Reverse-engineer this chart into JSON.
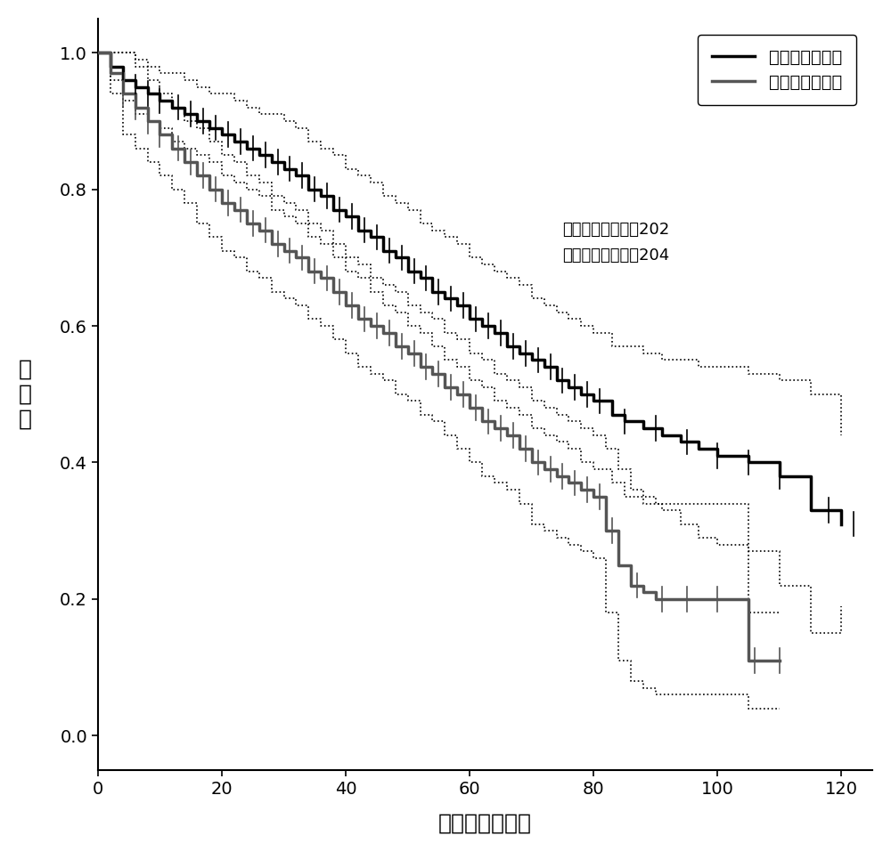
{
  "xlabel": "生存时间（月）",
  "ylabel": "生\n存\n率",
  "xlim": [
    0,
    125
  ],
  "ylim": [
    -0.05,
    1.05
  ],
  "xticks": [
    0,
    20,
    40,
    60,
    80,
    100,
    120
  ],
  "yticks": [
    0.0,
    0.2,
    0.4,
    0.6,
    0.8,
    1.0
  ],
  "legend_labels": [
    "六因子低表达组",
    "六因子高表达组"
  ],
  "annotation_text": "高表达组样本数：202\n低表达组样本数：204",
  "low_color": "#000000",
  "high_color": "#555555",
  "ci_color": "#000000",
  "low_lw": 2.5,
  "high_lw": 2.5,
  "ci_lw": 1.2,
  "low_times": [
    0,
    2,
    4,
    6,
    8,
    10,
    12,
    14,
    16,
    18,
    20,
    22,
    24,
    26,
    28,
    30,
    32,
    34,
    36,
    38,
    40,
    42,
    44,
    46,
    48,
    50,
    52,
    54,
    56,
    58,
    60,
    62,
    64,
    66,
    68,
    70,
    72,
    74,
    76,
    78,
    80,
    83,
    85,
    88,
    91,
    94,
    97,
    100,
    105,
    110,
    115,
    120
  ],
  "low_surv": [
    1.0,
    0.98,
    0.96,
    0.95,
    0.94,
    0.93,
    0.92,
    0.91,
    0.9,
    0.89,
    0.88,
    0.87,
    0.86,
    0.85,
    0.84,
    0.83,
    0.82,
    0.8,
    0.79,
    0.77,
    0.76,
    0.74,
    0.73,
    0.71,
    0.7,
    0.68,
    0.67,
    0.65,
    0.64,
    0.63,
    0.61,
    0.6,
    0.59,
    0.57,
    0.56,
    0.55,
    0.54,
    0.52,
    0.51,
    0.5,
    0.49,
    0.47,
    0.46,
    0.45,
    0.44,
    0.43,
    0.42,
    0.41,
    0.4,
    0.38,
    0.33,
    0.31
  ],
  "low_ci_upper": [
    1.0,
    1.0,
    1.0,
    0.99,
    0.98,
    0.97,
    0.97,
    0.96,
    0.95,
    0.94,
    0.94,
    0.93,
    0.92,
    0.91,
    0.91,
    0.9,
    0.89,
    0.87,
    0.86,
    0.85,
    0.83,
    0.82,
    0.81,
    0.79,
    0.78,
    0.77,
    0.75,
    0.74,
    0.73,
    0.72,
    0.7,
    0.69,
    0.68,
    0.67,
    0.66,
    0.64,
    0.63,
    0.62,
    0.61,
    0.6,
    0.59,
    0.57,
    0.57,
    0.56,
    0.55,
    0.55,
    0.54,
    0.54,
    0.53,
    0.52,
    0.5,
    0.44
  ],
  "low_ci_lower": [
    1.0,
    0.96,
    0.93,
    0.91,
    0.9,
    0.89,
    0.87,
    0.86,
    0.85,
    0.84,
    0.82,
    0.81,
    0.8,
    0.79,
    0.77,
    0.76,
    0.75,
    0.73,
    0.72,
    0.7,
    0.68,
    0.67,
    0.65,
    0.63,
    0.62,
    0.6,
    0.59,
    0.57,
    0.55,
    0.54,
    0.52,
    0.51,
    0.49,
    0.48,
    0.47,
    0.45,
    0.44,
    0.43,
    0.42,
    0.4,
    0.39,
    0.37,
    0.35,
    0.34,
    0.33,
    0.31,
    0.29,
    0.28,
    0.27,
    0.22,
    0.15,
    0.19
  ],
  "high_times": [
    0,
    2,
    4,
    6,
    8,
    10,
    12,
    14,
    16,
    18,
    20,
    22,
    24,
    26,
    28,
    30,
    32,
    34,
    36,
    38,
    40,
    42,
    44,
    46,
    48,
    50,
    52,
    54,
    56,
    58,
    60,
    62,
    64,
    66,
    68,
    70,
    72,
    74,
    76,
    78,
    80,
    82,
    84,
    86,
    88,
    90,
    92,
    95,
    98,
    100,
    105,
    110
  ],
  "high_surv": [
    1.0,
    0.97,
    0.94,
    0.92,
    0.9,
    0.88,
    0.86,
    0.84,
    0.82,
    0.8,
    0.78,
    0.77,
    0.75,
    0.74,
    0.72,
    0.71,
    0.7,
    0.68,
    0.67,
    0.65,
    0.63,
    0.61,
    0.6,
    0.59,
    0.57,
    0.56,
    0.54,
    0.53,
    0.51,
    0.5,
    0.48,
    0.46,
    0.45,
    0.44,
    0.42,
    0.4,
    0.39,
    0.38,
    0.37,
    0.36,
    0.35,
    0.3,
    0.25,
    0.22,
    0.21,
    0.2,
    0.2,
    0.2,
    0.2,
    0.2,
    0.11,
    0.11
  ],
  "high_ci_upper": [
    1.0,
    1.0,
    1.0,
    0.98,
    0.96,
    0.94,
    0.92,
    0.9,
    0.89,
    0.87,
    0.85,
    0.84,
    0.82,
    0.81,
    0.79,
    0.78,
    0.77,
    0.75,
    0.74,
    0.72,
    0.7,
    0.69,
    0.67,
    0.66,
    0.65,
    0.63,
    0.62,
    0.61,
    0.59,
    0.58,
    0.56,
    0.55,
    0.53,
    0.52,
    0.51,
    0.49,
    0.48,
    0.47,
    0.46,
    0.45,
    0.44,
    0.42,
    0.39,
    0.36,
    0.35,
    0.34,
    0.34,
    0.34,
    0.34,
    0.34,
    0.18,
    0.18
  ],
  "high_ci_lower": [
    1.0,
    0.94,
    0.88,
    0.86,
    0.84,
    0.82,
    0.8,
    0.78,
    0.75,
    0.73,
    0.71,
    0.7,
    0.68,
    0.67,
    0.65,
    0.64,
    0.63,
    0.61,
    0.6,
    0.58,
    0.56,
    0.54,
    0.53,
    0.52,
    0.5,
    0.49,
    0.47,
    0.46,
    0.44,
    0.42,
    0.4,
    0.38,
    0.37,
    0.36,
    0.34,
    0.31,
    0.3,
    0.29,
    0.28,
    0.27,
    0.26,
    0.18,
    0.11,
    0.08,
    0.07,
    0.06,
    0.06,
    0.06,
    0.06,
    0.06,
    0.04,
    0.04
  ],
  "low_censor_times": [
    4,
    6,
    8,
    10,
    13,
    15,
    17,
    19,
    21,
    23,
    25,
    27,
    29,
    31,
    33,
    35,
    37,
    39,
    41,
    43,
    45,
    47,
    49,
    51,
    53,
    55,
    57,
    59,
    61,
    63,
    65,
    67,
    69,
    71,
    73,
    75,
    77,
    79,
    81,
    85,
    90,
    95,
    100,
    105,
    110,
    118,
    122
  ],
  "high_censor_times": [
    4,
    6,
    8,
    10,
    13,
    15,
    17,
    19,
    21,
    23,
    25,
    27,
    29,
    31,
    33,
    35,
    37,
    39,
    41,
    43,
    45,
    47,
    49,
    51,
    53,
    55,
    57,
    59,
    61,
    63,
    65,
    67,
    69,
    71,
    73,
    75,
    77,
    79,
    81,
    83,
    87,
    91,
    95,
    100,
    106,
    110
  ]
}
